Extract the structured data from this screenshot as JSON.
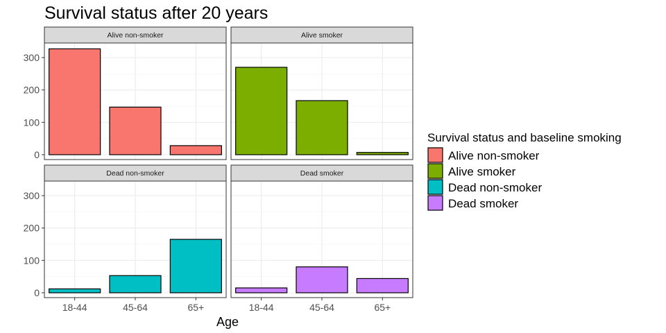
{
  "chart_data": {
    "type": "bar",
    "title": "Survival status after 20 years",
    "xlabel": "Age",
    "ylabel": "",
    "ylim": [
      -15,
      345
    ],
    "yticks": [
      0,
      100,
      200,
      300
    ],
    "categories": [
      "18-44",
      "45-64",
      "65+"
    ],
    "grid": true,
    "legend": {
      "title": "Survival status and baseline smoking",
      "position": "right"
    },
    "series": [
      {
        "name": "Alive non-smoker",
        "color": "#F8766D",
        "values": [
          327,
          147,
          28
        ]
      },
      {
        "name": "Alive smoker",
        "color": "#7CAE00",
        "values": [
          270,
          167,
          7
        ]
      },
      {
        "name": "Dead non-smoker",
        "color": "#00BFC4",
        "values": [
          12,
          53,
          165
        ]
      },
      {
        "name": "Dead smoker",
        "color": "#C77CFF",
        "values": [
          15,
          80,
          44
        ]
      }
    ]
  }
}
